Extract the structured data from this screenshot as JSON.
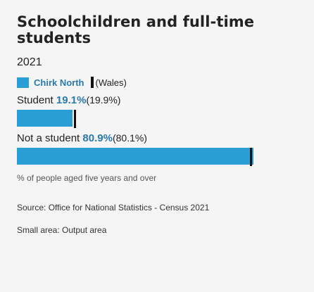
{
  "title": "Schoolchildren and full-time students",
  "year": "2021",
  "legend": {
    "area_name": "Chirk North",
    "comparison_name": "(Wales)"
  },
  "colors": {
    "area": "#2a9fd6",
    "area_text": "#2a7ab0",
    "comparison_marker": "#111111"
  },
  "chart_data": {
    "type": "bar",
    "orientation": "horizontal",
    "categories": [
      "Student",
      "Not a student"
    ],
    "xlim": [
      0,
      100
    ],
    "series": [
      {
        "name": "Chirk North",
        "values": [
          19.1,
          80.9
        ]
      },
      {
        "name": "(Wales)",
        "values": [
          19.9,
          80.1
        ]
      }
    ],
    "value_labels": [
      "19.1%",
      "80.9%"
    ],
    "comparison_labels": [
      "(19.9%)",
      "(80.1%)"
    ]
  },
  "note": "% of people aged five years and over",
  "source": "Source: Office for National Statistics - Census 2021",
  "small_area": "Small area: Output area"
}
